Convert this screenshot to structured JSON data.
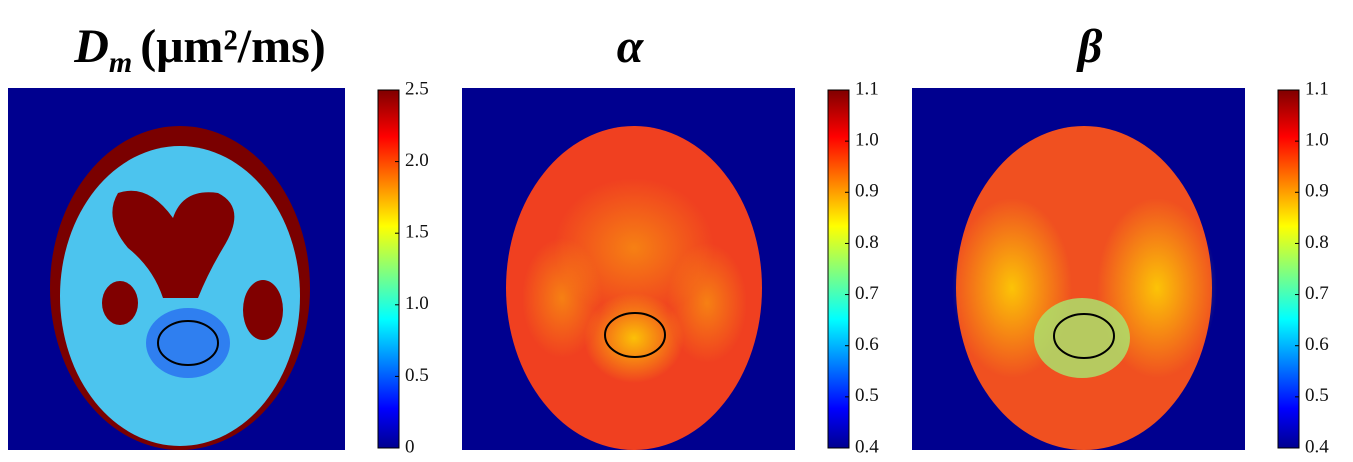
{
  "chart_data": [
    {
      "type": "heatmap",
      "title": "D",
      "title_subscript": "m",
      "title_units": "(μm²/ms)",
      "colormap": "jet",
      "clim": [
        0,
        2.5
      ],
      "cticks": [
        0,
        0.5,
        {
          "value": 1,
          "label": "1.0"
        },
        1.5,
        {
          "value": 2,
          "label": "2.0"
        },
        2.5
      ]
    },
    {
      "type": "heatmap",
      "title": "α",
      "colormap": "jet",
      "clim": [
        0.4,
        1.1
      ],
      "cticks": [
        0.4,
        0.5,
        0.6,
        0.7,
        0.8,
        0.9,
        {
          "value": 1,
          "label": "1.0"
        },
        1.1
      ]
    },
    {
      "type": "heatmap",
      "title": "β",
      "colormap": "jet",
      "clim": [
        0.4,
        1.1
      ],
      "cticks": [
        0.4,
        0.5,
        0.6,
        0.7,
        0.8,
        0.9,
        {
          "value": 1,
          "label": "1.0"
        },
        1.1
      ]
    }
  ]
}
